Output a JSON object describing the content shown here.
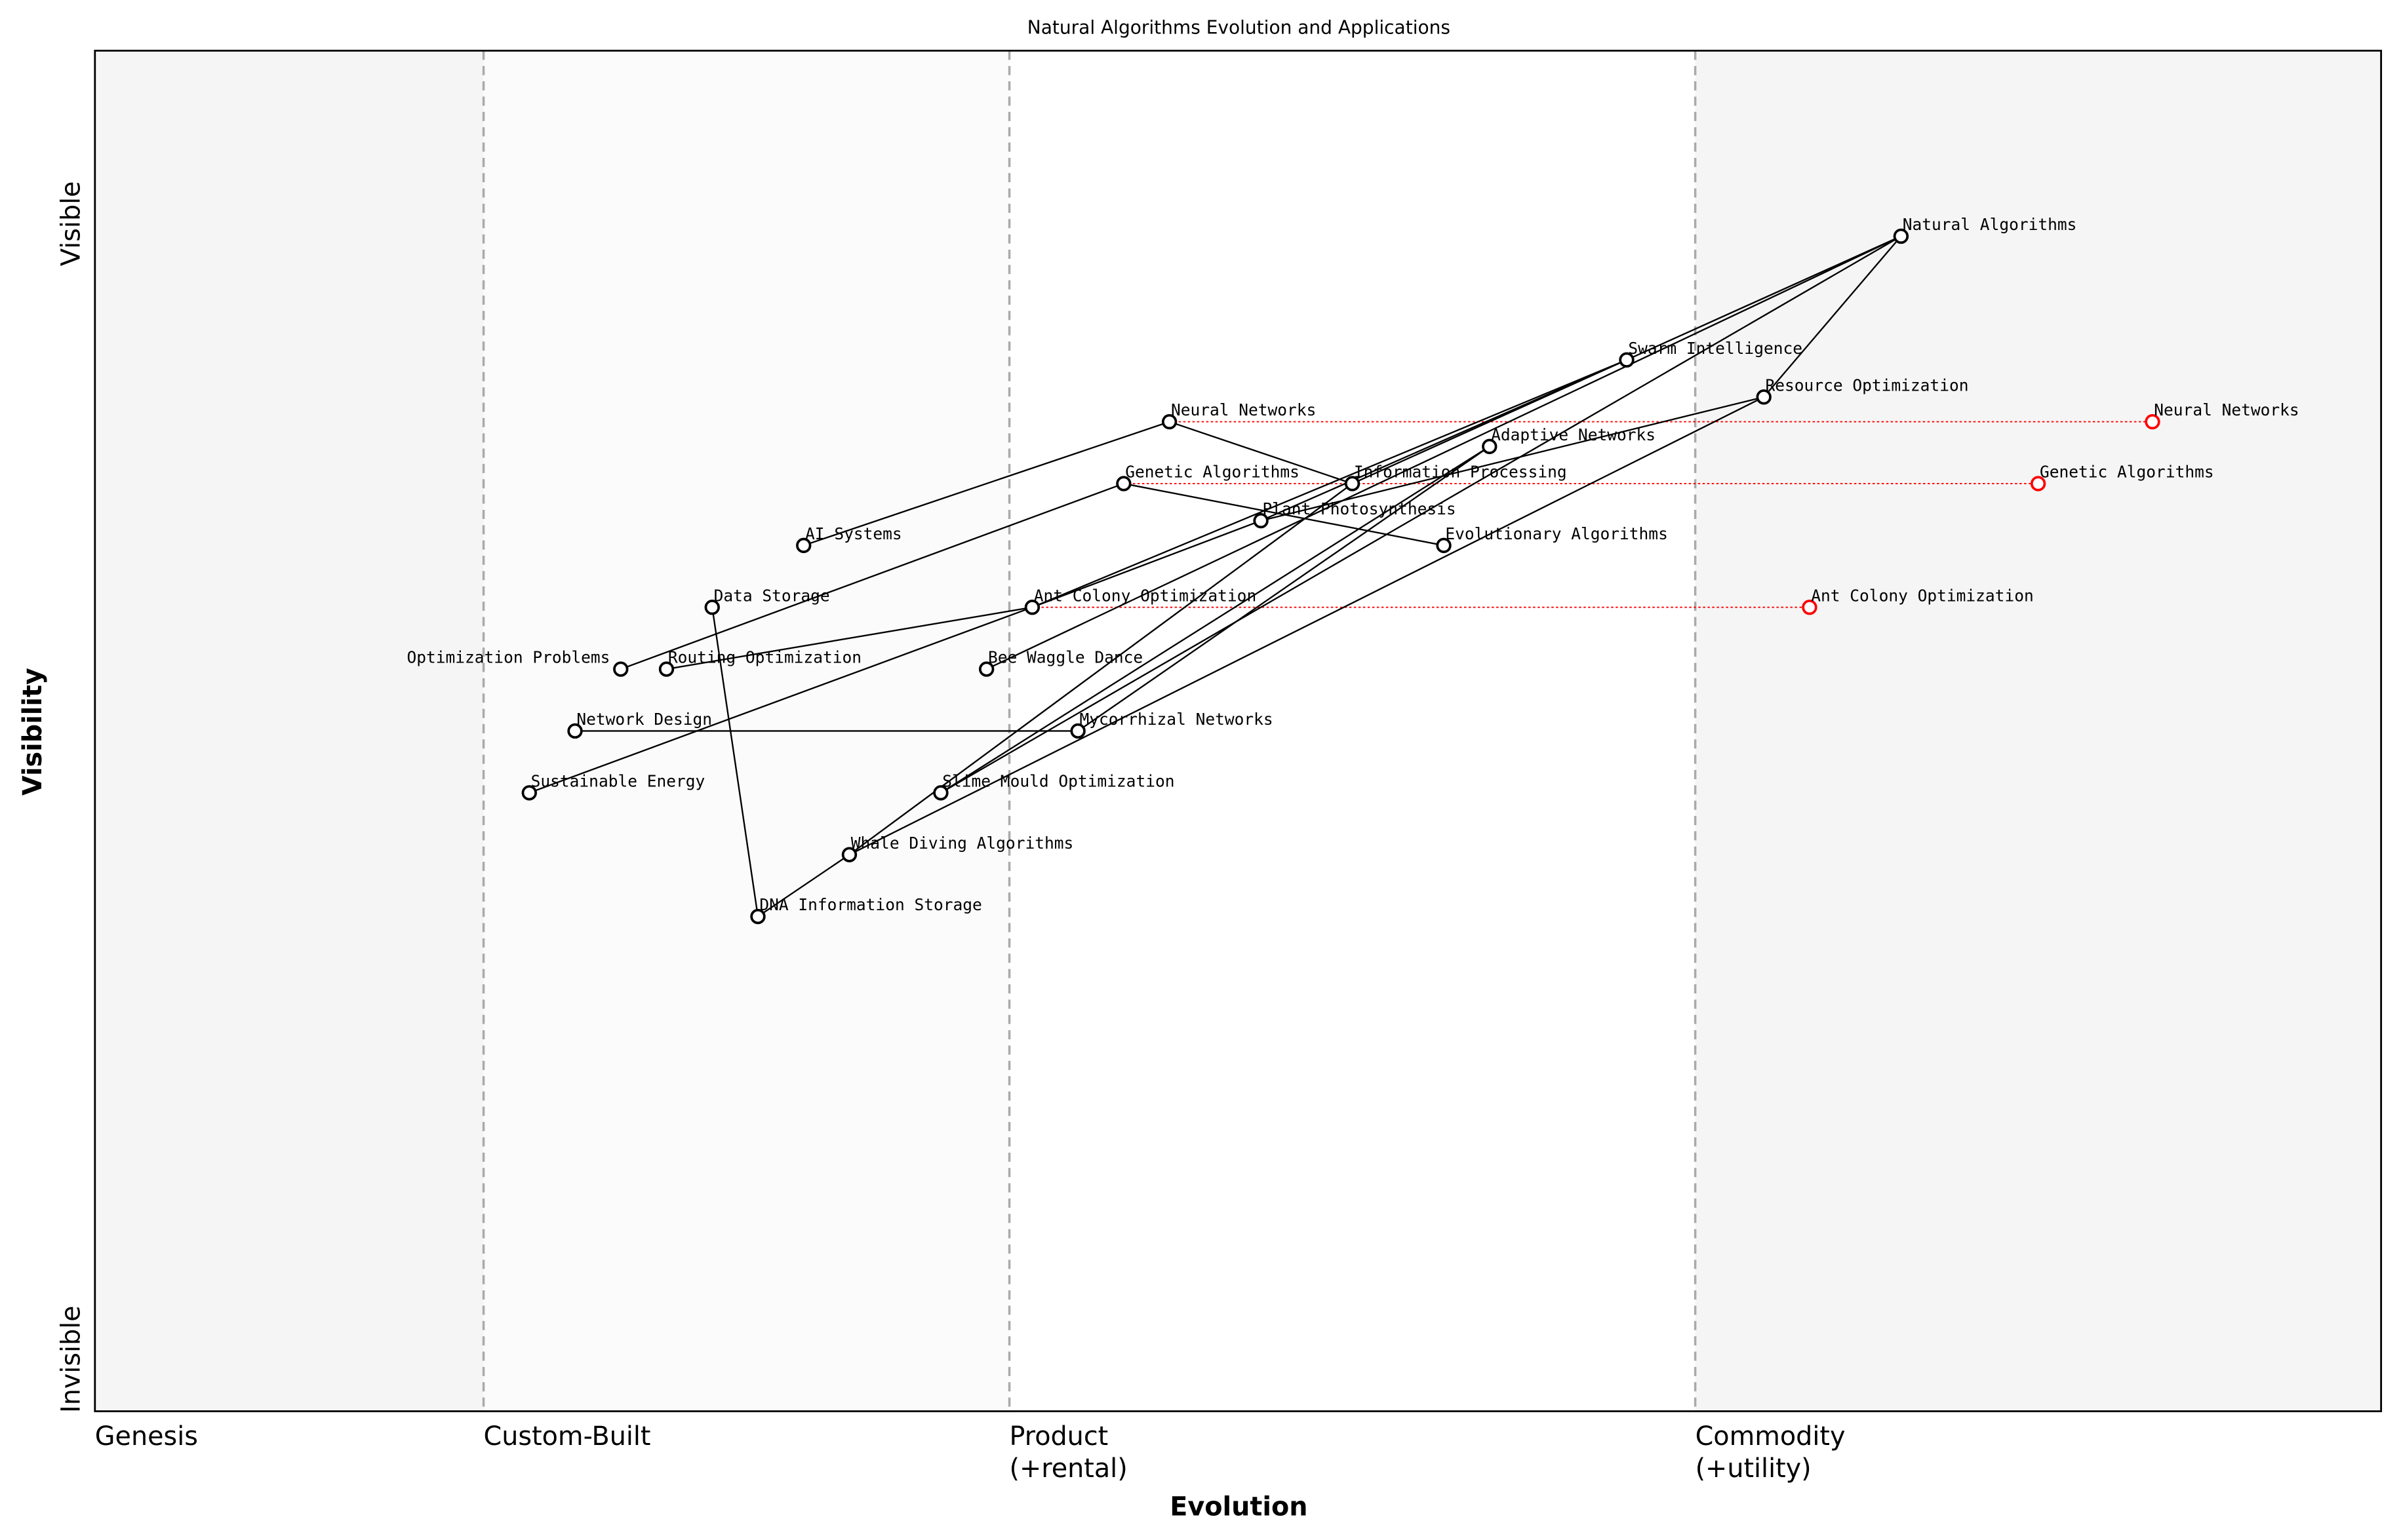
{
  "title": "Natural Algorithms Evolution and Applications",
  "axes": {
    "x_title": "Evolution",
    "y_title": "Visibility",
    "y_top": "Visible",
    "y_bottom": "Invisible",
    "stages": [
      {
        "line1": "Genesis",
        "line2": "",
        "at": 0.0
      },
      {
        "line1": "Custom-Built",
        "line2": "",
        "at": 0.17
      },
      {
        "line1": "Product",
        "line2": "(+rental)",
        "at": 0.4
      },
      {
        "line1": "Commodity",
        "line2": "(+utility)",
        "at": 0.7
      }
    ]
  },
  "colors": {
    "node": "#000000",
    "evolved": "#ff0000",
    "link": "#000000",
    "stage_line": "#aaaaaa",
    "genesis_bg": "#f5f5f5",
    "commodity_bg": "#f5f5f5"
  },
  "components": [
    {
      "name": "Natural Algorithms",
      "evolution": 0.79,
      "visibility": 0.95
    },
    {
      "name": "Swarm Intelligence",
      "evolution": 0.67,
      "visibility": 0.85
    },
    {
      "name": "Resource Optimization",
      "evolution": 0.73,
      "visibility": 0.82
    },
    {
      "name": "Neural Networks",
      "evolution": 0.47,
      "visibility": 0.8
    },
    {
      "name": "Adaptive Networks",
      "evolution": 0.61,
      "visibility": 0.78
    },
    {
      "name": "Genetic Algorithms",
      "evolution": 0.45,
      "visibility": 0.75
    },
    {
      "name": "Information Processing",
      "evolution": 0.55,
      "visibility": 0.75
    },
    {
      "name": "Plant Photosynthesis",
      "evolution": 0.51,
      "visibility": 0.72
    },
    {
      "name": "AI Systems",
      "evolution": 0.31,
      "visibility": 0.7
    },
    {
      "name": "Evolutionary Algorithms",
      "evolution": 0.59,
      "visibility": 0.7
    },
    {
      "name": "Data Storage",
      "evolution": 0.27,
      "visibility": 0.65
    },
    {
      "name": "Ant Colony Optimization",
      "evolution": 0.41,
      "visibility": 0.65
    },
    {
      "name": "Optimization Problems",
      "evolution": 0.23,
      "visibility": 0.6
    },
    {
      "name": "Routing Optimization",
      "evolution": 0.25,
      "visibility": 0.6
    },
    {
      "name": "Bee Waggle Dance",
      "evolution": 0.39,
      "visibility": 0.6
    },
    {
      "name": "Network Design",
      "evolution": 0.21,
      "visibility": 0.55
    },
    {
      "name": "Mycorrhizal Networks",
      "evolution": 0.43,
      "visibility": 0.55
    },
    {
      "name": "Sustainable Energy",
      "evolution": 0.19,
      "visibility": 0.5
    },
    {
      "name": "Slime Mould Optimization",
      "evolution": 0.37,
      "visibility": 0.5
    },
    {
      "name": "Whale Diving Algorithms",
      "evolution": 0.33,
      "visibility": 0.45
    },
    {
      "name": "DNA Information Storage",
      "evolution": 0.29,
      "visibility": 0.4
    }
  ],
  "evolved": [
    {
      "name": "Neural Networks",
      "evolution": 0.9
    },
    {
      "name": "Genetic Algorithms",
      "evolution": 0.85
    },
    {
      "name": "Ant Colony Optimization",
      "evolution": 0.75
    }
  ],
  "links": [
    [
      "Natural Algorithms",
      "Swarm Intelligence"
    ],
    [
      "Natural Algorithms",
      "Resource Optimization"
    ],
    [
      "Natural Algorithms",
      "Bee Waggle Dance"
    ],
    [
      "Natural Algorithms",
      "Slime Mould Optimization"
    ],
    [
      "Swarm Intelligence",
      "Ant Colony Optimization"
    ],
    [
      "Swarm Intelligence",
      "Plant Photosynthesis"
    ],
    [
      "Swarm Intelligence",
      "Information Processing"
    ],
    [
      "Resource Optimization",
      "Plant Photosynthesis"
    ],
    [
      "Resource Optimization",
      "Whale Diving Algorithms"
    ],
    [
      "Adaptive Networks",
      "Slime Mould Optimization"
    ],
    [
      "Adaptive Networks",
      "Mycorrhizal Networks"
    ],
    [
      "Information Processing",
      "Whale Diving Algorithms"
    ],
    [
      "Neural Networks",
      "AI Systems"
    ],
    [
      "Neural Networks",
      "Information Processing"
    ],
    [
      "Genetic Algorithms",
      "Optimization Problems"
    ],
    [
      "Genetic Algorithms",
      "Evolutionary Algorithms"
    ],
    [
      "Ant Colony Optimization",
      "Plant Photosynthesis"
    ],
    [
      "Ant Colony Optimization",
      "Routing Optimization"
    ],
    [
      "Ant Colony Optimization",
      "Sustainable Energy"
    ],
    [
      "Network Design",
      "Mycorrhizal Networks"
    ],
    [
      "Data Storage",
      "DNA Information Storage"
    ],
    [
      "DNA Information Storage",
      "Whale Diving Algorithms"
    ]
  ]
}
